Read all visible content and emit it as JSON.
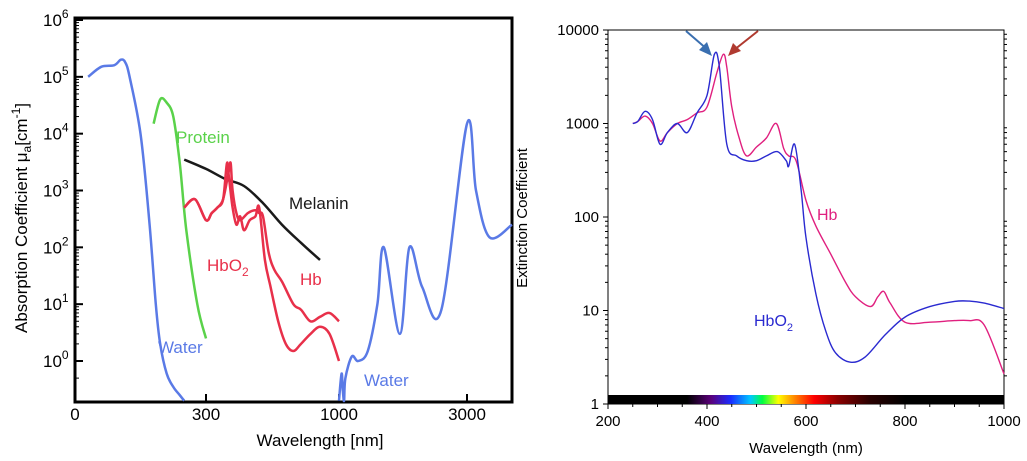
{
  "chart_data": [
    {
      "type": "line",
      "xlabel": "Wavelength [nm]",
      "ylabel": "Absorption Coefficient μa[cm-1]",
      "ylabel_parts": {
        "main": "Absorption Coefficient μ",
        "sub": "a",
        "mid": "[cm",
        "sup": "-1",
        "end": "]"
      },
      "yscale": "log",
      "ylim": [
        0.2,
        1000000
      ],
      "xscale": "segmented",
      "x_ticks": [
        "0",
        "300",
        "1000",
        "3000"
      ],
      "y_ticks": [
        {
          "value": 1,
          "base": "10",
          "exp": "0"
        },
        {
          "value": 10,
          "base": "10",
          "exp": "1"
        },
        {
          "value": 100,
          "base": "10",
          "exp": "2"
        },
        {
          "value": 1000,
          "base": "10",
          "exp": "3"
        },
        {
          "value": 10000,
          "base": "10",
          "exp": "4"
        },
        {
          "value": 100000,
          "base": "10",
          "exp": "5"
        },
        {
          "value": 1000000,
          "base": "10",
          "exp": "6"
        }
      ],
      "grid": false,
      "series": [
        {
          "name": "Water",
          "color": "#5a7ae6",
          "x": [
            30,
            60,
            90,
            105,
            115,
            125,
            150,
            170,
            185,
            195,
            210,
            225,
            240,
            250
          ],
          "y": [
            100000,
            150000,
            160000,
            200000,
            180000,
            100000,
            10000,
            300,
            10,
            2,
            0.6,
            0.35,
            0.25,
            0.2
          ]
        },
        {
          "name": "Water",
          "color": "#5a7ae6",
          "x": [
            1000,
            1040,
            1060,
            1080,
            1100,
            1200,
            1300,
            1450,
            1600,
            1700,
            1950,
            2100,
            2300,
            2600,
            3000,
            3200,
            3500,
            4000
          ],
          "y": [
            0.2,
            0.6,
            0.3,
            0.2,
            0.5,
            1.2,
            1.0,
            1.5,
            10,
            100,
            3,
            100,
            20,
            8,
            15000,
            1000,
            150,
            250
          ]
        },
        {
          "name": "Protein",
          "color": "#5ad24a",
          "x": [
            180,
            195,
            210,
            225,
            240,
            255,
            280,
            300
          ],
          "y": [
            15000,
            40000,
            35000,
            20000,
            3000,
            200,
            10,
            2.5
          ]
        },
        {
          "name": "Melanin",
          "color": "#1a1a1a",
          "x": [
            250,
            300,
            400,
            500,
            600,
            700,
            800,
            900
          ],
          "y": [
            3500,
            2400,
            1600,
            1200,
            600,
            250,
            120,
            60
          ]
        },
        {
          "name": "HbO2",
          "color": "#e8304a",
          "x": [
            250,
            275,
            300,
            330,
            360,
            390,
            410,
            420,
            440,
            460,
            480,
            500,
            530,
            560,
            580,
            610,
            640,
            680,
            720,
            760,
            800,
            850,
            900,
            950,
            1000
          ],
          "y": [
            500,
            700,
            300,
            400,
            500,
            700,
            3000,
            1800,
            500,
            250,
            350,
            200,
            300,
            350,
            500,
            60,
            20,
            5,
            2,
            1.5,
            2,
            3,
            4,
            3,
            1
          ]
        },
        {
          "name": "Hb",
          "color": "#e8304a",
          "x": [
            250,
            275,
            300,
            330,
            360,
            390,
            420,
            430,
            440,
            460,
            480,
            520,
            560,
            580,
            600,
            630,
            660,
            700,
            760,
            800,
            850,
            900,
            950,
            1000
          ],
          "y": [
            500,
            700,
            300,
            400,
            500,
            700,
            2200,
            3000,
            1000,
            400,
            300,
            400,
            450,
            400,
            350,
            80,
            40,
            25,
            10,
            8,
            5,
            6,
            7,
            5
          ]
        }
      ],
      "labels": [
        {
          "text": "Protein",
          "color": "#5ad24a"
        },
        {
          "text": "Melanin",
          "color": "#1a1a1a"
        },
        {
          "text": "HbO",
          "sub": "2",
          "color": "#e8304a"
        },
        {
          "text": "Hb",
          "color": "#e8304a"
        },
        {
          "text": "Water",
          "color": "#5a7ae6"
        },
        {
          "text": "Water",
          "color": "#5a7ae6"
        }
      ]
    },
    {
      "type": "line",
      "xlabel": "Wavelength (nm)",
      "ylabel": "Extinction Coefficient",
      "xlim": [
        200,
        1000
      ],
      "ylim": [
        1,
        10000
      ],
      "yscale": "log",
      "x_ticks": [
        "200",
        "400",
        "600",
        "800",
        "1000"
      ],
      "y_ticks": [
        "1",
        "10",
        "100",
        "1000",
        "10000"
      ],
      "grid": false,
      "spectrum_bar": true,
      "series": [
        {
          "name": "Hb",
          "color": "#e0207f",
          "x": [
            250,
            260,
            275,
            290,
            305,
            320,
            340,
            360,
            380,
            400,
            420,
            433,
            440,
            450,
            465,
            480,
            500,
            520,
            540,
            555,
            565,
            580,
            600,
            620,
            650,
            680,
            700,
            730,
            745,
            757,
            770,
            800,
            850,
            900,
            930,
            960,
            1000
          ],
          "y": [
            1000,
            1050,
            1200,
            1000,
            650,
            800,
            1000,
            1100,
            1300,
            1500,
            3500,
            5500,
            4000,
            1500,
            700,
            450,
            560,
            700,
            1000,
            540,
            450,
            400,
            150,
            80,
            40,
            20,
            14,
            11,
            14,
            16,
            12,
            7.5,
            7.5,
            7.8,
            7.8,
            7,
            2.1
          ]
        },
        {
          "name": "HbO2",
          "color": "#2a2ad0",
          "x": [
            250,
            260,
            275,
            290,
            305,
            320,
            340,
            360,
            380,
            400,
            415,
            425,
            440,
            460,
            480,
            500,
            520,
            542,
            560,
            565,
            577,
            590,
            600,
            620,
            640,
            660,
            690,
            720,
            760,
            800,
            850,
            900,
            930,
            960,
            1000
          ],
          "y": [
            1000,
            1050,
            1350,
            1100,
            600,
            800,
            1000,
            800,
            1300,
            2000,
            5500,
            4000,
            600,
            450,
            400,
            400,
            450,
            500,
            400,
            350,
            600,
            200,
            60,
            15,
            6,
            3.5,
            2.8,
            3.2,
            5.5,
            8.5,
            11,
            12.5,
            12.6,
            12,
            10.5
          ]
        }
      ],
      "labels": [
        {
          "text": "Hb",
          "color": "#e0207f"
        },
        {
          "text": "HbO",
          "sub": "2",
          "color": "#2a2ad0"
        }
      ]
    }
  ]
}
